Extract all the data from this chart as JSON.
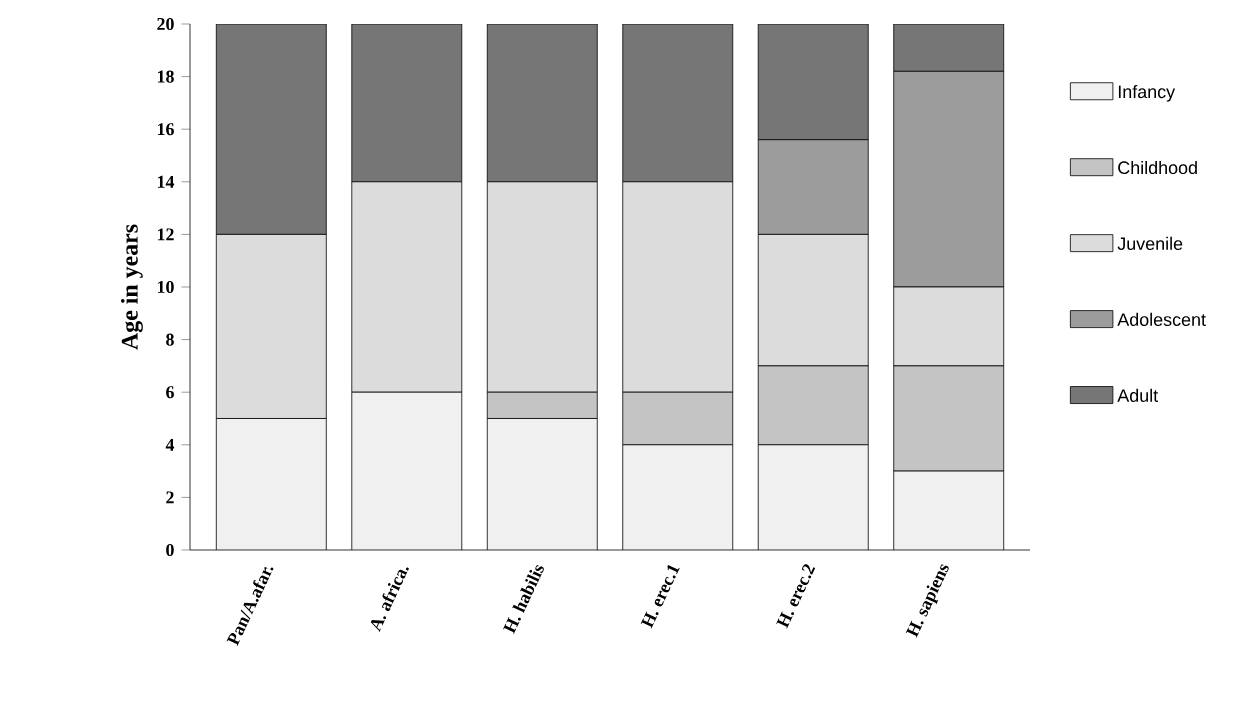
{
  "chart_data": {
    "type": "bar",
    "stacked": true,
    "ylabel": "Age in years",
    "categories": [
      "Pan/A.afar.",
      "A. africa.",
      "H. habilis",
      "H. erec.1",
      "H. erec.2",
      "H. sapiens"
    ],
    "series": [
      {
        "name": "Infancy",
        "color": "#f0f0f0",
        "values": [
          5,
          6,
          5,
          4,
          4,
          3
        ]
      },
      {
        "name": "Childhood",
        "color": "#c4c4c4",
        "values": [
          0,
          0,
          1,
          2,
          3,
          4
        ]
      },
      {
        "name": "Juvenile",
        "color": "#dcdcdc",
        "values": [
          7,
          8,
          8,
          8,
          5,
          3
        ]
      },
      {
        "name": "Adolescent",
        "color": "#9c9c9c",
        "values": [
          0,
          0,
          0,
          0,
          3.6,
          8.2
        ]
      },
      {
        "name": "Adult",
        "color": "#767676",
        "values": [
          8,
          6,
          6,
          6,
          4.4,
          1.8
        ]
      }
    ],
    "ylim": [
      0,
      20
    ],
    "yticks": [
      0,
      2,
      4,
      6,
      8,
      10,
      12,
      14,
      16,
      18,
      20
    ],
    "grid": false,
    "legend": "right"
  }
}
